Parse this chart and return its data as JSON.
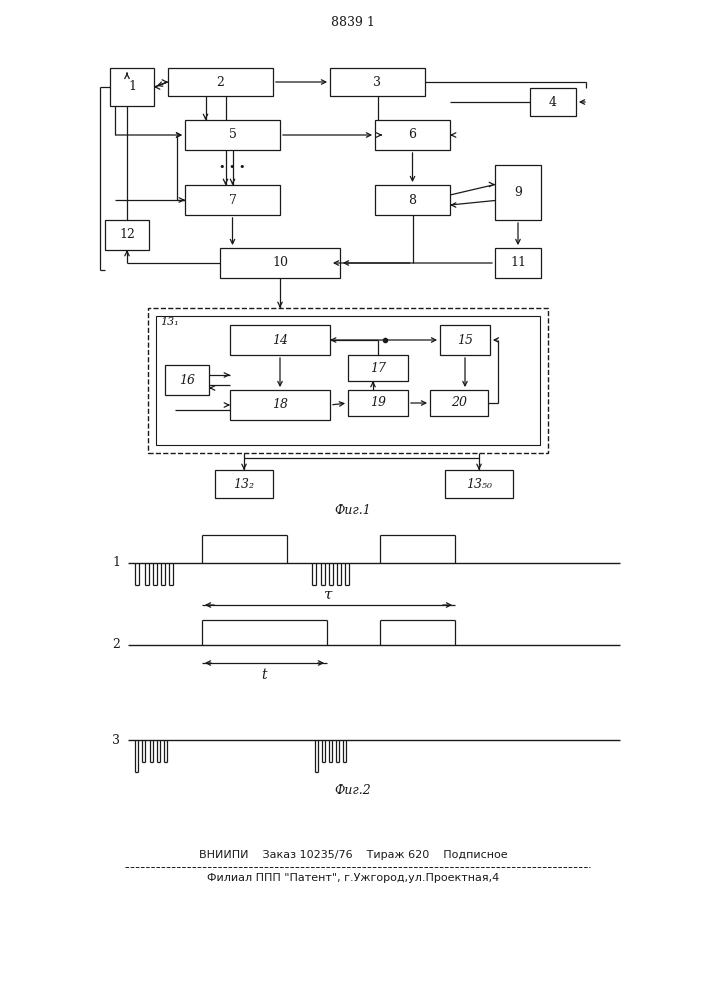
{
  "page_title": "8839 1",
  "fig1_label": "Фиг.1",
  "fig2_label": "Фиг.2",
  "footer_line1": "ВНИИПИ    Заказ 10235/76    Тираж 620    Подписное",
  "footer_line2": "Филиал ППП \"Патент\", г.Ужгород,ул.Проектная,4",
  "background": "#ffffff",
  "line_color": "#1a1a1a",
  "text_color": "#1a1a1a"
}
